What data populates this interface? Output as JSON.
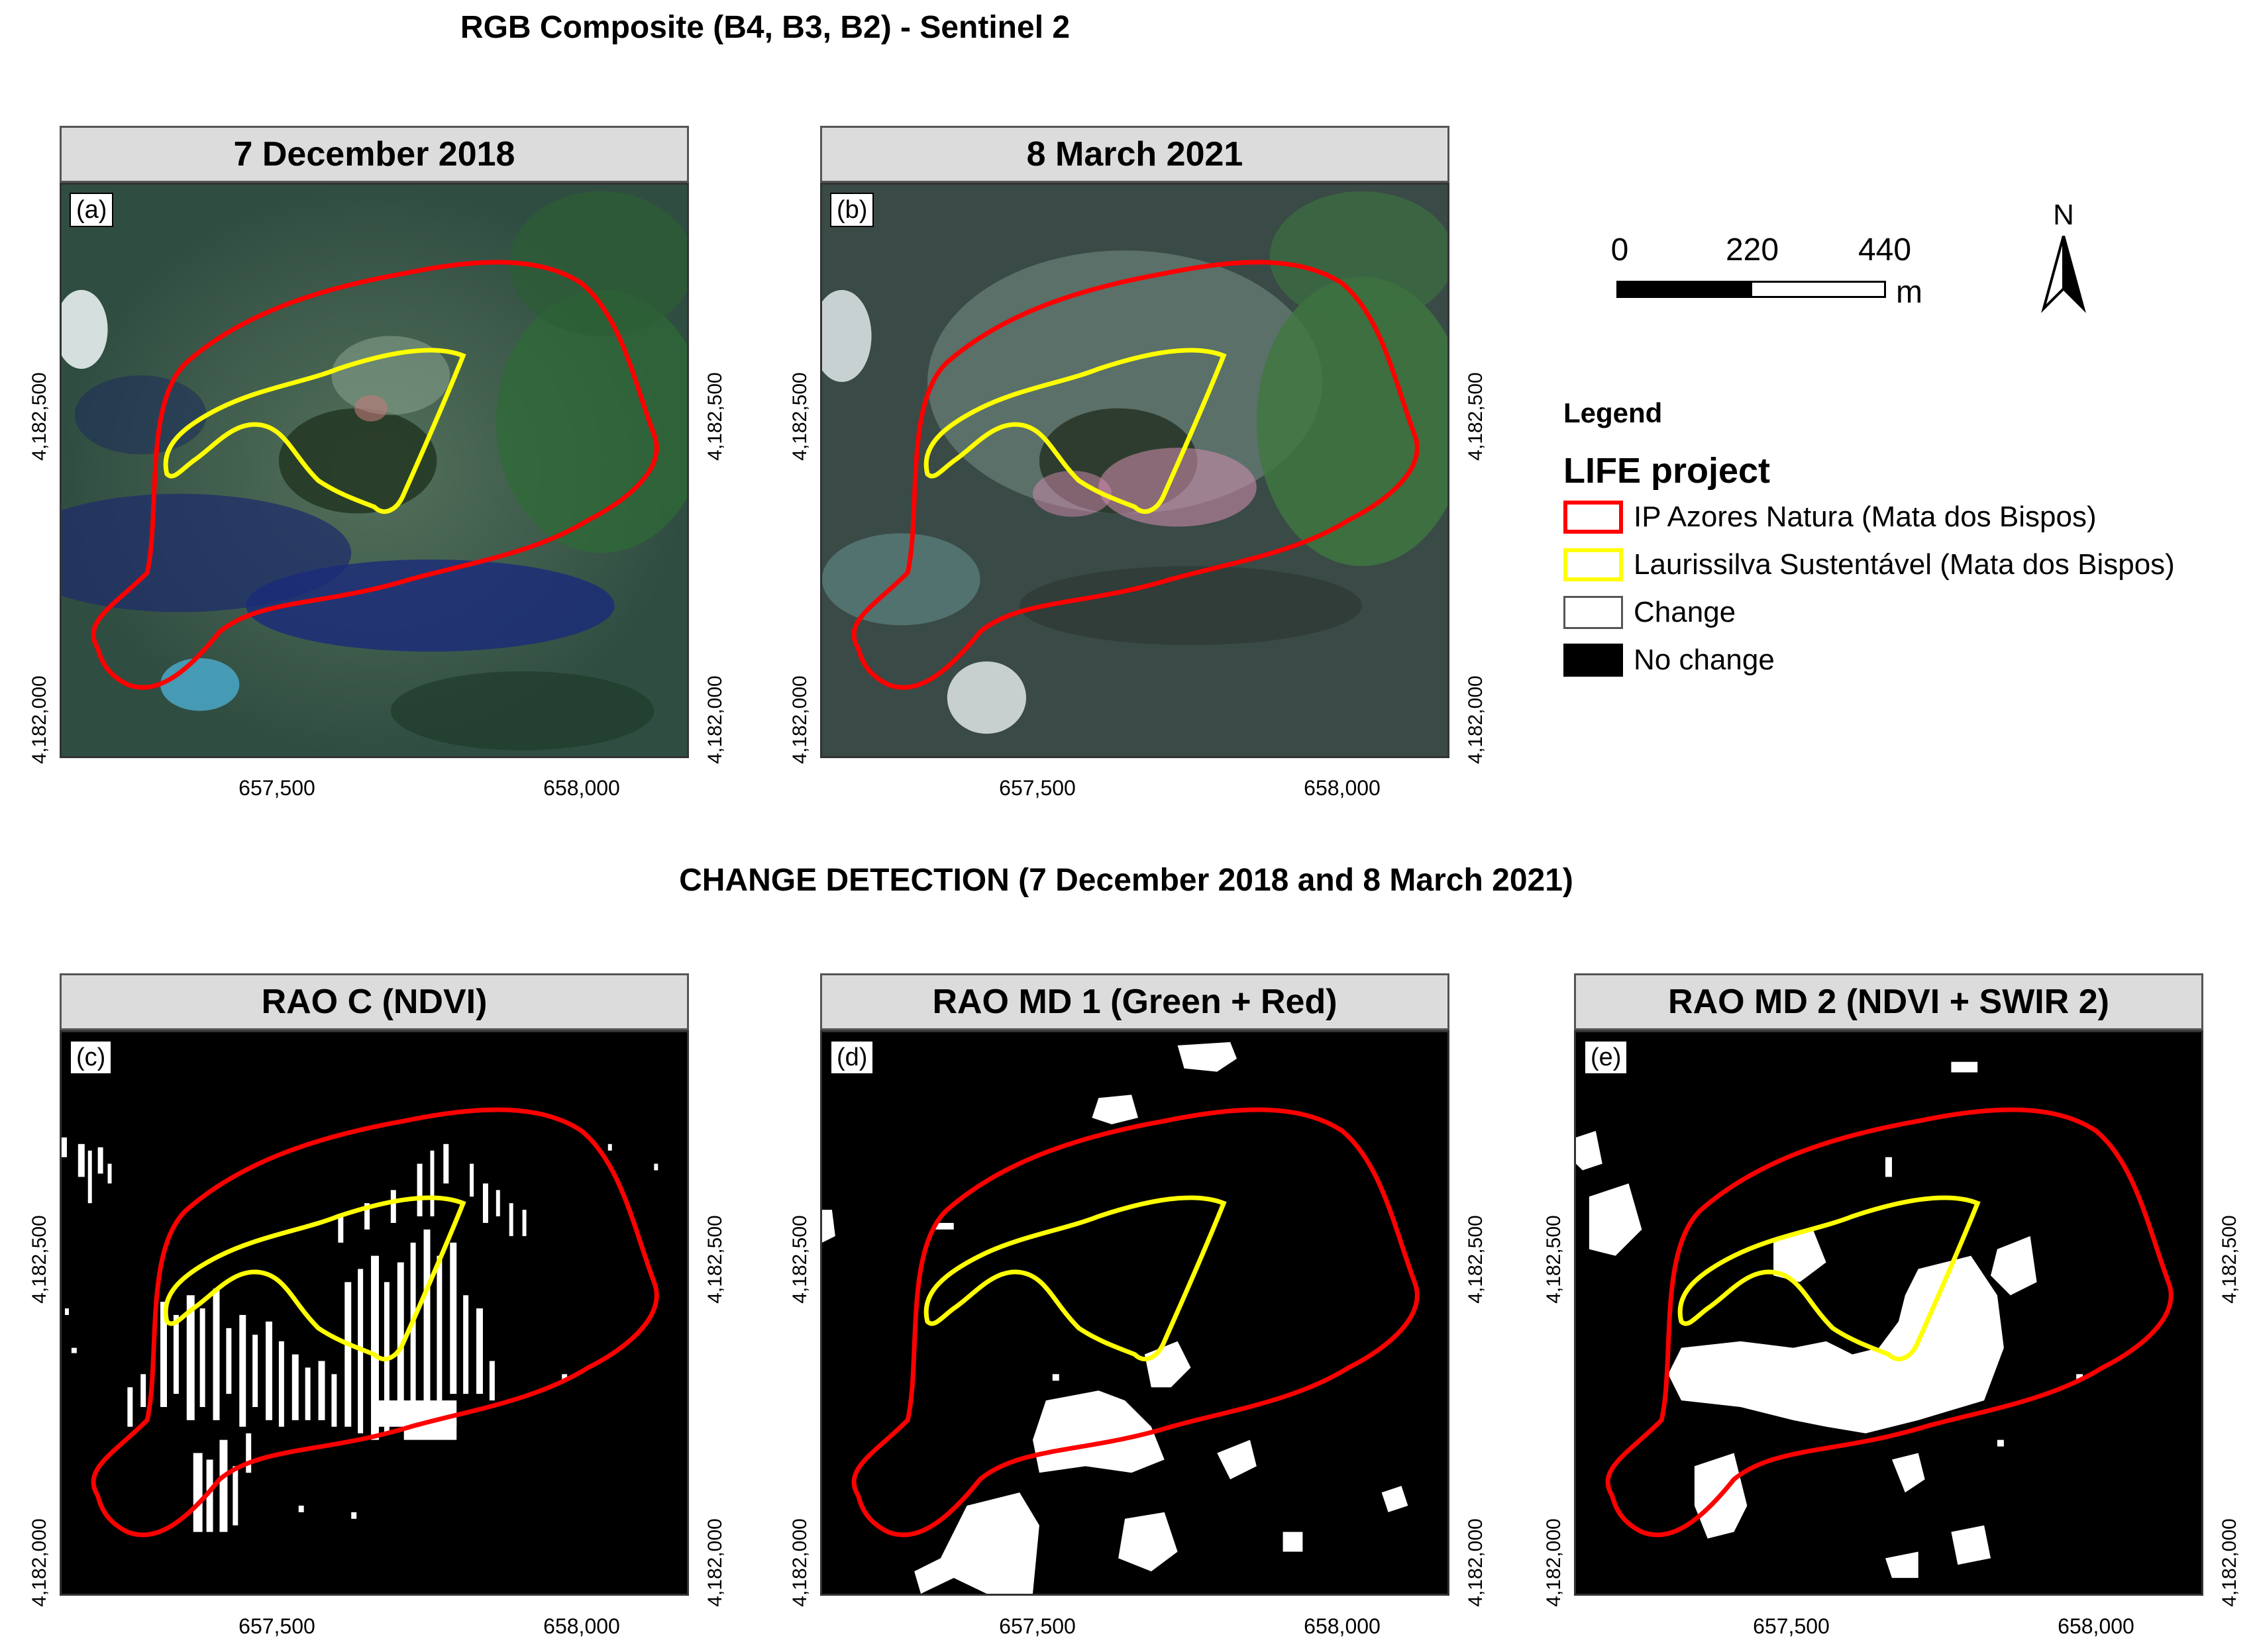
{
  "titles": {
    "top": "RGB Composite (B4, B3, B2) - Sentinel 2",
    "bottom": "CHANGE DETECTION (7 December 2018 and 8 March 2021)"
  },
  "axis": {
    "y_ticks": [
      "4,182,500",
      "4,182,000"
    ],
    "x_ticks": [
      "657,500",
      "658,000"
    ]
  },
  "panels": [
    {
      "letter": "(a)",
      "title": "7 December 2018",
      "kind": "rgb_2018"
    },
    {
      "letter": "(b)",
      "title": "8 March 2021",
      "kind": "rgb_2021"
    },
    {
      "letter": "(c)",
      "title": "RAO C (NDVI)",
      "kind": "change_c"
    },
    {
      "letter": "(d)",
      "title": "RAO MD 1 (Green + Red)",
      "kind": "change_d"
    },
    {
      "letter": "(e)",
      "title": "RAO MD 2 (NDVI + SWIR 2)",
      "kind": "change_e"
    }
  ],
  "scalebar": {
    "labels": [
      "0",
      "220",
      "440"
    ],
    "unit": "m"
  },
  "north_arrow": {
    "label": "N",
    "icon": "north-arrow-icon"
  },
  "legend": {
    "title": "Legend",
    "subtitle": "LIFE project",
    "items": [
      {
        "label": "IP Azores Natura (Mata dos Bispos)",
        "color": "#ff0000",
        "type": "outline"
      },
      {
        "label": "Laurissilva Sustentável (Mata dos Bispos)",
        "color": "#ffff00",
        "type": "outline"
      },
      {
        "label": "Change",
        "color": "#ffffff",
        "type": "fill"
      },
      {
        "label": "No change",
        "color": "#000000",
        "type": "fill"
      }
    ]
  }
}
